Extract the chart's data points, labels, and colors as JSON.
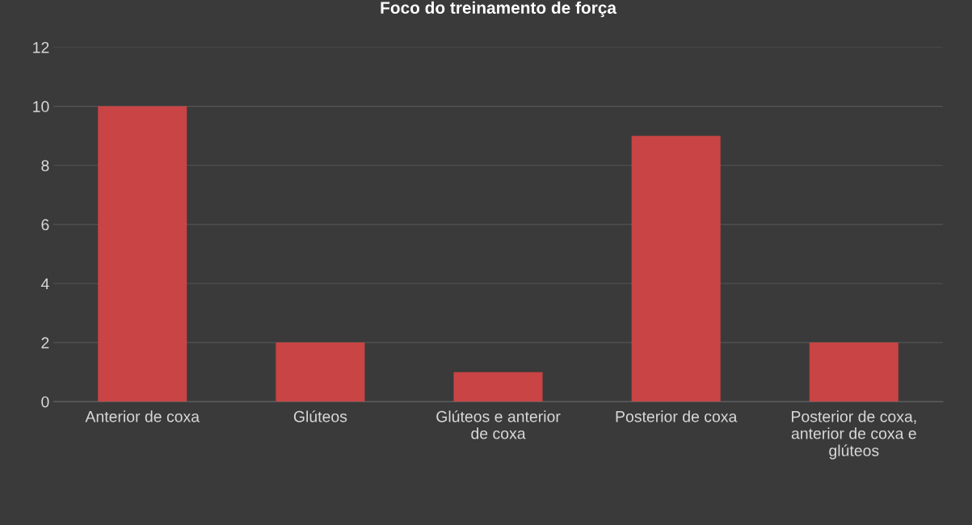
{
  "chart_data": {
    "type": "bar",
    "title": "Foco do treinamento de força",
    "categories": [
      "Anterior de coxa",
      "Glúteos",
      "Glúteos e anterior\nde coxa",
      "Posterior de coxa",
      "Posterior de coxa,\nanterior de coxa e\nglúteos"
    ],
    "values": [
      10,
      2,
      1,
      9,
      2
    ],
    "color": "#c94444",
    "ylim": [
      0,
      12
    ],
    "yticks": [
      0,
      2,
      4,
      6,
      8,
      10,
      12
    ],
    "grid": "y"
  }
}
